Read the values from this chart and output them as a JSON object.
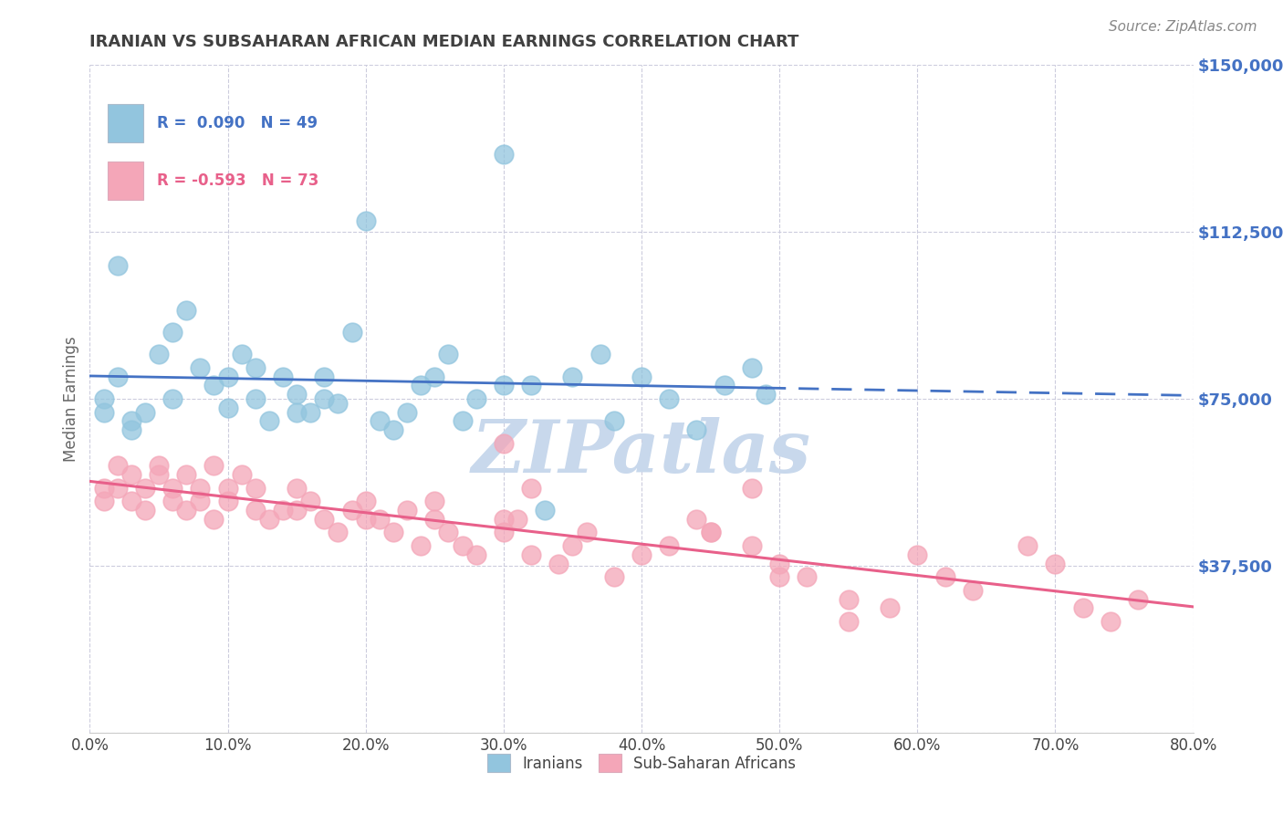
{
  "title": "IRANIAN VS SUBSAHARAN AFRICAN MEDIAN EARNINGS CORRELATION CHART",
  "source": "Source: ZipAtlas.com",
  "watermark": "ZIPatlas",
  "ylabel": "Median Earnings",
  "xlim": [
    0.0,
    0.8
  ],
  "ylim": [
    0,
    150000
  ],
  "yticks": [
    0,
    37500,
    75000,
    112500,
    150000
  ],
  "ytick_labels": [
    "",
    "$37,500",
    "$75,000",
    "$112,500",
    "$150,000"
  ],
  "xtick_labels": [
    "0.0%",
    "10.0%",
    "20.0%",
    "30.0%",
    "40.0%",
    "50.0%",
    "60.0%",
    "70.0%",
    "80.0%"
  ],
  "xticks": [
    0.0,
    0.1,
    0.2,
    0.3,
    0.4,
    0.5,
    0.6,
    0.7,
    0.8
  ],
  "blue_label": "Iranians",
  "pink_label": "Sub-Saharan Africans",
  "blue_R": 0.09,
  "blue_N": 49,
  "pink_R": -0.593,
  "pink_N": 73,
  "blue_color": "#92C5DE",
  "pink_color": "#F4A6B8",
  "blue_line_color": "#4472C4",
  "pink_line_color": "#E8608A",
  "title_color": "#404040",
  "source_color": "#888888",
  "axis_label_color": "#4472C4",
  "watermark_color": "#C8D8EC",
  "grid_color": "#CCCCDD",
  "background_color": "#FFFFFF",
  "blue_scatter_x": [
    0.01,
    0.01,
    0.02,
    0.02,
    0.03,
    0.03,
    0.04,
    0.05,
    0.06,
    0.06,
    0.07,
    0.08,
    0.09,
    0.1,
    0.1,
    0.11,
    0.12,
    0.12,
    0.13,
    0.14,
    0.15,
    0.15,
    0.16,
    0.17,
    0.17,
    0.18,
    0.19,
    0.2,
    0.21,
    0.22,
    0.23,
    0.24,
    0.25,
    0.26,
    0.27,
    0.28,
    0.3,
    0.32,
    0.33,
    0.35,
    0.37,
    0.38,
    0.42,
    0.44,
    0.46,
    0.48,
    0.49,
    0.3,
    0.4
  ],
  "blue_scatter_y": [
    75000,
    72000,
    105000,
    80000,
    70000,
    68000,
    72000,
    85000,
    90000,
    75000,
    95000,
    82000,
    78000,
    73000,
    80000,
    85000,
    75000,
    82000,
    70000,
    80000,
    76000,
    72000,
    72000,
    80000,
    75000,
    74000,
    90000,
    115000,
    70000,
    68000,
    72000,
    78000,
    80000,
    85000,
    70000,
    75000,
    130000,
    78000,
    50000,
    80000,
    85000,
    70000,
    75000,
    68000,
    78000,
    82000,
    76000,
    78000,
    80000
  ],
  "pink_scatter_x": [
    0.01,
    0.01,
    0.02,
    0.02,
    0.03,
    0.03,
    0.04,
    0.04,
    0.05,
    0.05,
    0.06,
    0.06,
    0.07,
    0.07,
    0.08,
    0.08,
    0.09,
    0.09,
    0.1,
    0.1,
    0.11,
    0.12,
    0.12,
    0.13,
    0.14,
    0.15,
    0.16,
    0.17,
    0.18,
    0.19,
    0.2,
    0.21,
    0.22,
    0.23,
    0.24,
    0.25,
    0.26,
    0.27,
    0.28,
    0.3,
    0.31,
    0.32,
    0.34,
    0.35,
    0.36,
    0.38,
    0.4,
    0.42,
    0.44,
    0.45,
    0.48,
    0.5,
    0.52,
    0.55,
    0.58,
    0.6,
    0.62,
    0.64,
    0.68,
    0.7,
    0.72,
    0.74,
    0.76,
    0.3,
    0.32,
    0.45,
    0.48,
    0.5,
    0.55,
    0.3,
    0.25,
    0.2,
    0.15
  ],
  "pink_scatter_y": [
    52000,
    55000,
    60000,
    55000,
    58000,
    52000,
    55000,
    50000,
    60000,
    58000,
    55000,
    52000,
    58000,
    50000,
    52000,
    55000,
    48000,
    60000,
    55000,
    52000,
    58000,
    50000,
    55000,
    48000,
    50000,
    55000,
    52000,
    48000,
    45000,
    50000,
    52000,
    48000,
    45000,
    50000,
    42000,
    48000,
    45000,
    42000,
    40000,
    45000,
    48000,
    40000,
    38000,
    42000,
    45000,
    35000,
    40000,
    42000,
    48000,
    45000,
    42000,
    38000,
    35000,
    30000,
    28000,
    40000,
    35000,
    32000,
    42000,
    38000,
    28000,
    25000,
    30000,
    65000,
    55000,
    45000,
    55000,
    35000,
    25000,
    48000,
    52000,
    48000,
    50000
  ]
}
